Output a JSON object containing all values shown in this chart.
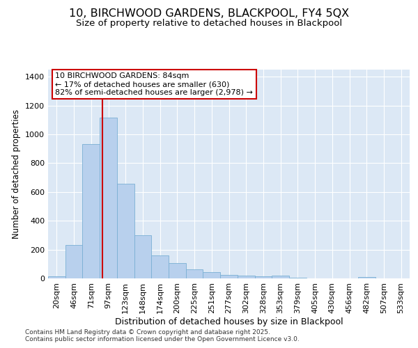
{
  "title": "10, BIRCHWOOD GARDENS, BLACKPOOL, FY4 5QX",
  "subtitle": "Size of property relative to detached houses in Blackpool",
  "xlabel": "Distribution of detached houses by size in Blackpool",
  "ylabel": "Number of detached properties",
  "categories": [
    "20sqm",
    "46sqm",
    "71sqm",
    "97sqm",
    "123sqm",
    "148sqm",
    "174sqm",
    "200sqm",
    "225sqm",
    "251sqm",
    "277sqm",
    "302sqm",
    "328sqm",
    "353sqm",
    "379sqm",
    "405sqm",
    "430sqm",
    "456sqm",
    "482sqm",
    "507sqm",
    "533sqm"
  ],
  "values": [
    15,
    232,
    935,
    1115,
    655,
    298,
    160,
    107,
    65,
    42,
    25,
    20,
    15,
    18,
    5,
    0,
    0,
    0,
    12,
    0,
    0
  ],
  "bar_color": "#b8d0ed",
  "bar_edge_color": "#7aafd4",
  "bar_width": 1.0,
  "vline_x": 2.65,
  "vline_color": "#cc0000",
  "annotation_box_text": "10 BIRCHWOOD GARDENS: 84sqm\n← 17% of detached houses are smaller (630)\n82% of semi-detached houses are larger (2,978) →",
  "annotation_box_color": "#cc0000",
  "annotation_box_bg": "#ffffff",
  "ylim": [
    0,
    1450
  ],
  "yticks": [
    0,
    200,
    400,
    600,
    800,
    1000,
    1200,
    1400
  ],
  "bg_color": "#dce8f5",
  "footer_text": "Contains HM Land Registry data © Crown copyright and database right 2025.\nContains public sector information licensed under the Open Government Licence v3.0.",
  "title_fontsize": 11.5,
  "subtitle_fontsize": 9.5,
  "xlabel_fontsize": 9,
  "ylabel_fontsize": 8.5,
  "tick_fontsize": 8,
  "annot_fontsize": 8,
  "footer_fontsize": 6.5
}
